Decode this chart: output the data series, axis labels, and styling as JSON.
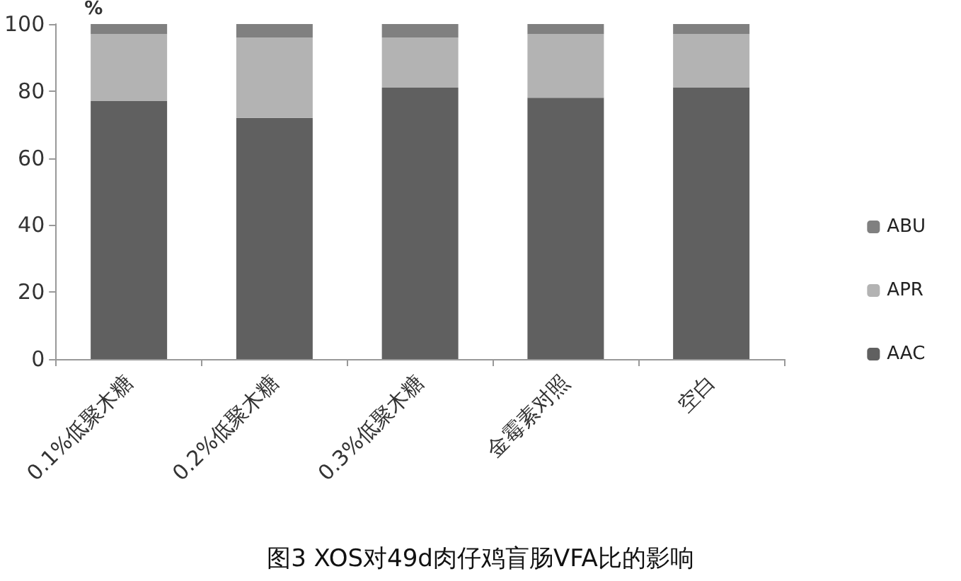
{
  "chart_data": {
    "type": "bar",
    "title": "图3 XOS对49d肉仔鸡盲肠VFA比的影响",
    "ylabel": "%",
    "categories": [
      "0.1%低聚木糖",
      "0.2%低聚木糖",
      "0.3%低聚木糖",
      "金霉素对照",
      "空白"
    ],
    "series": [
      {
        "name": "AAC",
        "color": "#606060",
        "values": [
          77,
          72,
          81,
          78,
          81
        ]
      },
      {
        "name": "APR",
        "color": "#b3b3b3",
        "values": [
          20,
          24,
          15,
          19,
          16
        ]
      },
      {
        "name": "ABU",
        "color": "#808080",
        "values": [
          3,
          4,
          4,
          3,
          3
        ]
      }
    ],
    "stacked": true,
    "ylim": [
      0,
      100
    ],
    "yticks": [
      0,
      20,
      40,
      60,
      80,
      100
    ],
    "grid": false,
    "legend": "right"
  }
}
